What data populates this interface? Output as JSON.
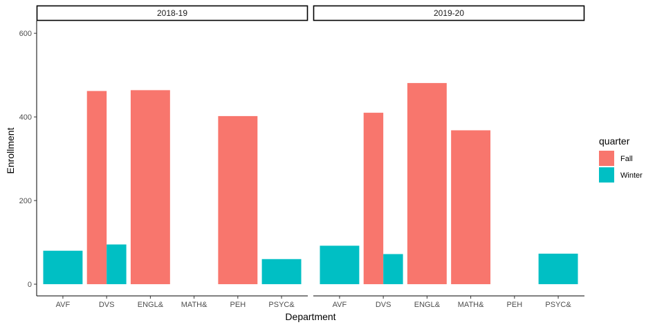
{
  "chart_data": {
    "type": "bar",
    "layout": "faceted, dodged bars",
    "xlabel": "Department",
    "ylabel": "Enrollment",
    "ylim": [
      -28,
      630
    ],
    "yticks": [
      0,
      200,
      400,
      600
    ],
    "categories": [
      "AVF",
      "DVS",
      "ENGL&",
      "MATH&",
      "PEH",
      "PSYC&"
    ],
    "legend": {
      "title": "quarter",
      "placement": "right",
      "entries": [
        {
          "name": "Fall",
          "color": "#F8766D"
        },
        {
          "name": "Winter",
          "color": "#00BFC4"
        }
      ]
    },
    "facets": [
      {
        "label": "2018-19",
        "series": [
          {
            "name": "Fall",
            "values": [
              null,
              462,
              464,
              null,
              402,
              null
            ]
          },
          {
            "name": "Winter",
            "values": [
              80,
              95,
              null,
              null,
              null,
              60
            ]
          }
        ]
      },
      {
        "label": "2019-20",
        "series": [
          {
            "name": "Fall",
            "values": [
              null,
              410,
              481,
              368,
              null,
              null
            ]
          },
          {
            "name": "Winter",
            "values": [
              92,
              72,
              null,
              null,
              null,
              73
            ]
          }
        ]
      }
    ],
    "grid": false
  }
}
